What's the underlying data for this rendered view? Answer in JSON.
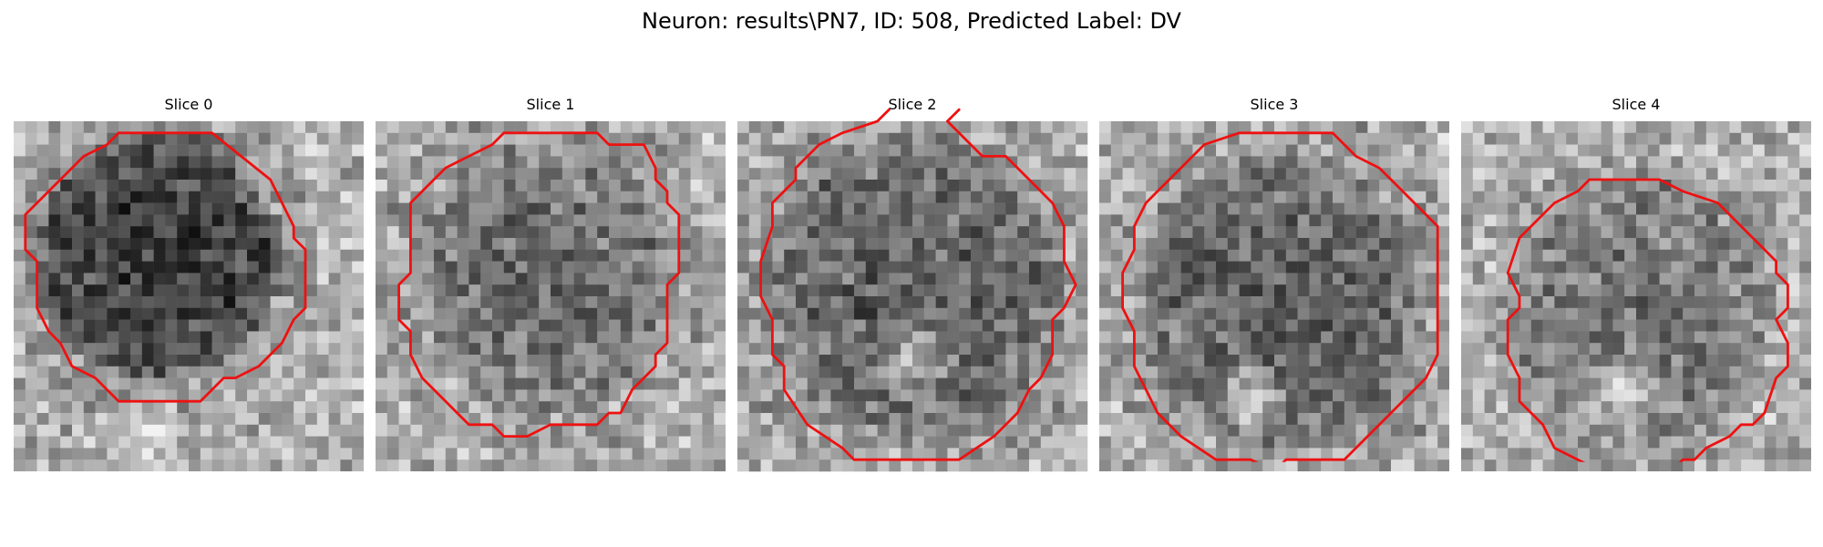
{
  "figure": {
    "title": "Neuron: results\\PN7, ID: 508, Predicted Label: DV"
  },
  "panels": [
    {
      "title": "Slice 0"
    },
    {
      "title": "Slice 1"
    },
    {
      "title": "Slice 2"
    },
    {
      "title": "Slice 3"
    },
    {
      "title": "Slice 4"
    }
  ],
  "colors": {
    "contour": "#ee1111",
    "background": "#ffffff"
  }
}
